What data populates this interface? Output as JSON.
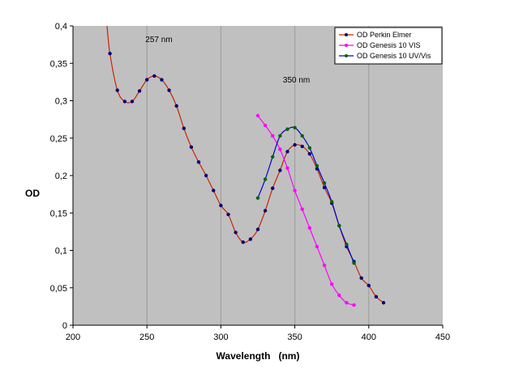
{
  "chart_data": {
    "type": "line",
    "title": "",
    "xlabel": "Wavelength   (nm)",
    "ylabel": "OD",
    "xlim": [
      200,
      450
    ],
    "ylim": [
      0,
      0.4
    ],
    "xticks": [
      200,
      250,
      300,
      350,
      400,
      450
    ],
    "yticks": [
      0,
      0.05,
      0.1,
      0.15,
      0.2,
      0.25,
      0.3,
      0.35,
      0.4
    ],
    "ytick_labels": [
      "0",
      "0,05",
      "0,1",
      "0,15",
      "0,2",
      "0,25",
      "0,3",
      "0,35",
      "0,4"
    ],
    "grid": "vertical",
    "plot_background": "#c0c0c0",
    "legend_position": "top-right",
    "annotations": [
      {
        "label": "257  nm",
        "x": 257
      },
      {
        "label": "350  nm",
        "x": 350
      }
    ],
    "series": [
      {
        "name": "OD  Perkin  Elmer",
        "line_color": "#cc2200",
        "marker_color": "#000080",
        "curve_start": [
          223,
          0.4
        ],
        "x": [
          225,
          230,
          235,
          240,
          245,
          250,
          255,
          260,
          265,
          270,
          275,
          280,
          285,
          290,
          295,
          300,
          305,
          310,
          315,
          320,
          325,
          330,
          335,
          340,
          345,
          350,
          355,
          360,
          365,
          370,
          375,
          380,
          385,
          390,
          395,
          400,
          405,
          410
        ],
        "values": [
          0.363,
          0.314,
          0.299,
          0.299,
          0.313,
          0.328,
          0.333,
          0.328,
          0.314,
          0.293,
          0.263,
          0.238,
          0.218,
          0.2,
          0.18,
          0.16,
          0.148,
          0.124,
          0.111,
          0.115,
          0.128,
          0.153,
          0.183,
          0.207,
          0.232,
          0.241,
          0.239,
          0.229,
          0.209,
          0.184,
          0.163,
          0.133,
          0.105,
          0.085,
          0.063,
          0.053,
          0.038,
          0.03
        ]
      },
      {
        "name": "OD  Genesis  10  VIS",
        "line_color": "#ff00ff",
        "marker_color": "#ff00ff",
        "x": [
          325,
          330,
          335,
          340,
          345,
          350,
          355,
          360,
          365,
          370,
          375,
          380,
          385,
          390
        ],
        "values": [
          0.28,
          0.267,
          0.253,
          0.235,
          0.21,
          0.18,
          0.155,
          0.13,
          0.105,
          0.08,
          0.055,
          0.04,
          0.03,
          0.027
        ]
      },
      {
        "name": "OD  Genesis  10  UV/Vis",
        "line_color": "#0000cc",
        "marker_color": "#006400",
        "x": [
          325,
          330,
          335,
          340,
          345,
          350,
          355,
          360,
          365,
          370,
          375,
          380,
          385,
          390
        ],
        "values": [
          0.17,
          0.195,
          0.225,
          0.253,
          0.262,
          0.264,
          0.253,
          0.237,
          0.213,
          0.19,
          0.165,
          0.133,
          0.108,
          0.083
        ]
      }
    ]
  }
}
